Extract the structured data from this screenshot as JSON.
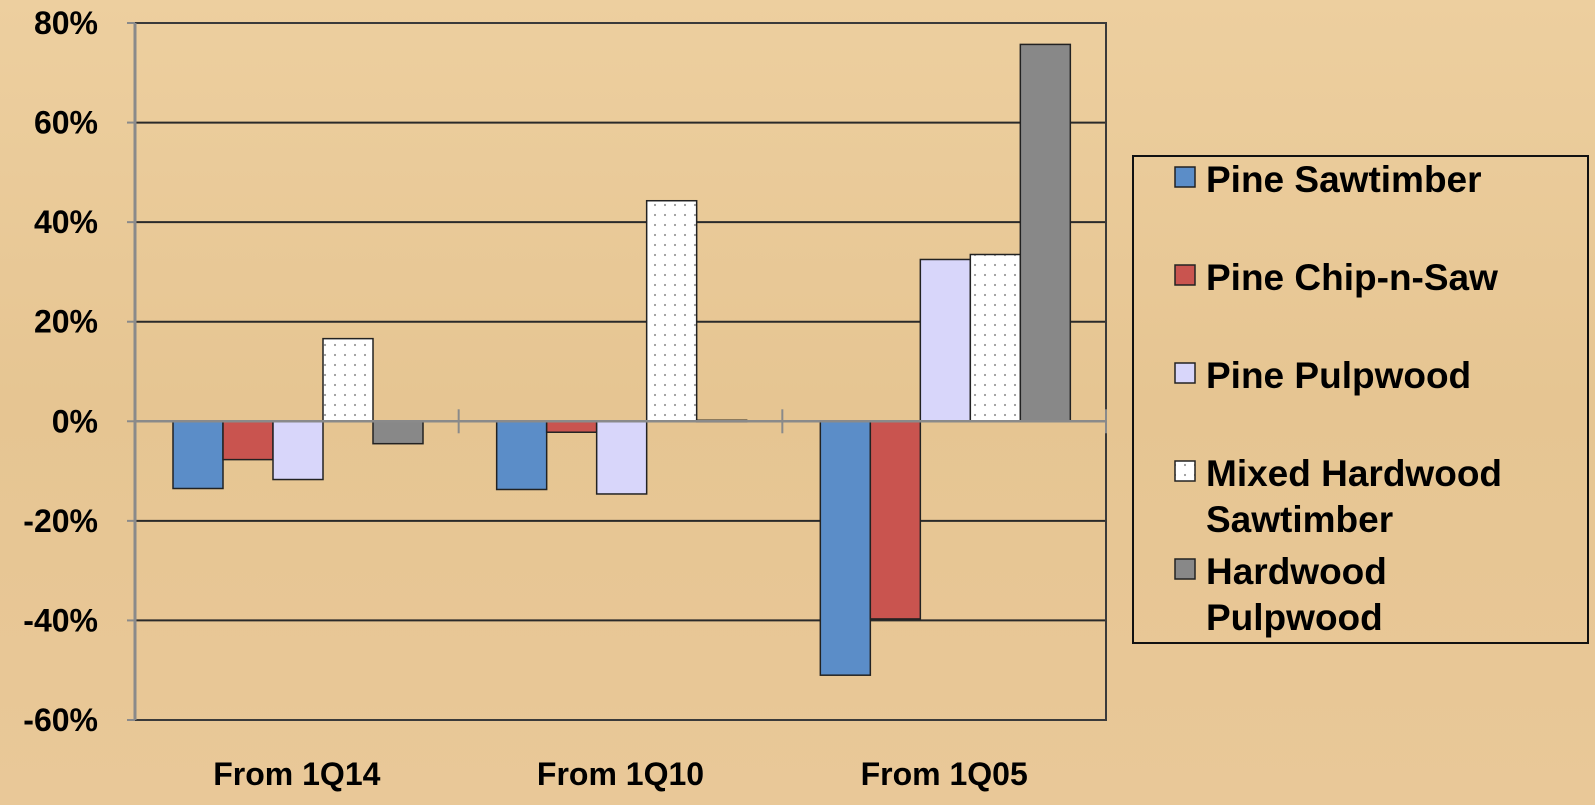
{
  "chart_data": {
    "type": "bar",
    "categories": [
      "From 1Q14",
      "From 1Q10",
      "From 1Q05"
    ],
    "ylim": [
      -0.6,
      0.8
    ],
    "yticks": [
      0.8,
      0.6,
      0.4,
      0.2,
      0,
      -0.2,
      -0.4,
      -0.6
    ],
    "ytick_labels": [
      "80%",
      "60%",
      "40%",
      "20%",
      "0%",
      "-20%",
      "-40%",
      "-60%"
    ],
    "grid": true,
    "legend_position": "right",
    "series": [
      {
        "name": "Pine Sawtimber",
        "name_lines": [
          "Pine Sawtimber"
        ],
        "color": "#5b8dc8",
        "pattern": "solid",
        "values": [
          -0.135,
          -0.137,
          -0.51
        ]
      },
      {
        "name": "Pine Chip-n-Saw",
        "name_lines": [
          "Pine Chip-n-Saw"
        ],
        "color": "#c9544f",
        "pattern": "solid",
        "values": [
          -0.077,
          -0.022,
          -0.397
        ]
      },
      {
        "name": "Pine Pulpwood",
        "name_lines": [
          "Pine Pulpwood"
        ],
        "color": "#d8d6fa",
        "pattern": "solid",
        "values": [
          -0.117,
          -0.146,
          0.325
        ]
      },
      {
        "name": "Mixed Hardwood Sawtimber",
        "name_lines": [
          "Mixed Hardwood",
          "Sawtimber"
        ],
        "color": "#ffffff",
        "pattern": "dots",
        "values": [
          0.166,
          0.443,
          0.335
        ]
      },
      {
        "name": "Hardwood Pulpwood",
        "name_lines": [
          "Hardwood",
          "Pulpwood"
        ],
        "color": "#888888",
        "pattern": "solid",
        "values": [
          -0.045,
          0.002,
          0.757
        ]
      }
    ]
  }
}
